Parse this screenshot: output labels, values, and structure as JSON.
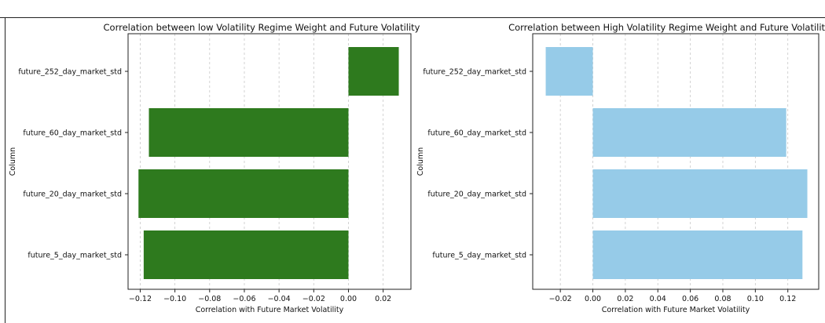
{
  "chart_data": [
    {
      "type": "bar",
      "orientation": "horizontal",
      "title": "Correlation between low Volatility Regime Weight and Future Volatility",
      "xlabel": "Correlation with Future Market Volatility",
      "ylabel": "Column",
      "categories": [
        "future_252_day_market_std",
        "future_60_day_market_std",
        "future_20_day_market_std",
        "future_5_day_market_std"
      ],
      "values": [
        0.029,
        -0.115,
        -0.121,
        -0.118
      ],
      "xlim": [
        -0.127,
        0.036
      ],
      "xticks": [
        "−0.12",
        "−0.10",
        "−0.08",
        "−0.06",
        "−0.04",
        "−0.02",
        "0.00",
        "0.02"
      ],
      "xtick_values": [
        -0.12,
        -0.1,
        -0.08,
        -0.06,
        -0.04,
        -0.02,
        0.0,
        0.02
      ],
      "bar_color": "#2e7a1e",
      "grid": "x-dashed"
    },
    {
      "type": "bar",
      "orientation": "horizontal",
      "title": "Correlation between High Volatility Regime Weight and Future Volatility",
      "xlabel": "Correlation with Future Market Volatility",
      "ylabel": "Column",
      "categories": [
        "future_252_day_market_std",
        "future_60_day_market_std",
        "future_20_day_market_std",
        "future_5_day_market_std"
      ],
      "values": [
        -0.029,
        0.119,
        0.132,
        0.129
      ],
      "xlim": [
        -0.037,
        0.139
      ],
      "xticks": [
        "−0.02",
        "0.00",
        "0.02",
        "0.04",
        "0.06",
        "0.08",
        "0.10",
        "0.12"
      ],
      "xtick_values": [
        -0.02,
        0.0,
        0.02,
        0.04,
        0.06,
        0.08,
        0.1,
        0.12
      ],
      "bar_color": "#96cbe8",
      "grid": "x-dashed"
    }
  ]
}
